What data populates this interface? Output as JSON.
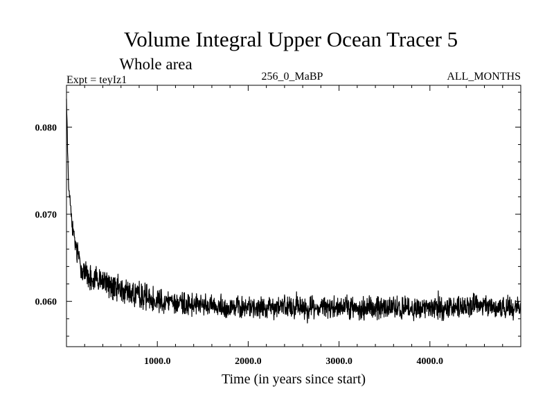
{
  "chart_data": {
    "type": "line",
    "title": "Volume Integral Upper Ocean Tracer 5",
    "subtitle": "Whole area",
    "experiment_label": "Expt = teyIz1",
    "run_label": "256_0_MaBP",
    "period_label": "ALL_MONTHS",
    "xlabel": "Time (in years since start)",
    "ylabel": "",
    "xlim": [
      0,
      5000
    ],
    "ylim": [
      0.0548,
      0.0848
    ],
    "x_ticks": [
      {
        "value": 1000,
        "label": "1000.0"
      },
      {
        "value": 2000,
        "label": "2000.0"
      },
      {
        "value": 3000,
        "label": "3000.0"
      },
      {
        "value": 4000,
        "label": "4000.0"
      }
    ],
    "y_ticks": [
      {
        "value": 0.06,
        "label": "0.060"
      },
      {
        "value": 0.07,
        "label": "0.070"
      },
      {
        "value": 0.08,
        "label": "0.080"
      }
    ],
    "grid": false,
    "series": [
      {
        "name": "Volume Integral Upper Ocean Tracer 5",
        "color": "#000000",
        "x": [
          0,
          10,
          20,
          40,
          60,
          80,
          100,
          150,
          200,
          300,
          400,
          500,
          700,
          1000,
          1500,
          2000,
          2500,
          3000,
          3500,
          4000,
          4500,
          5000
        ],
        "y": [
          0.084,
          0.078,
          0.0745,
          0.0715,
          0.069,
          0.0675,
          0.0662,
          0.0645,
          0.0632,
          0.0625,
          0.0622,
          0.0617,
          0.061,
          0.0602,
          0.0595,
          0.0593,
          0.0594,
          0.0593,
          0.0593,
          0.0592,
          0.0594,
          0.0593
        ],
        "noise_amplitude": [
          0.0008,
          0.0009,
          0.0009,
          0.0009,
          0.0009,
          0.0009,
          0.001,
          0.0011,
          0.0012,
          0.0013,
          0.0013,
          0.0013,
          0.0012,
          0.0011,
          0.001,
          0.001,
          0.001,
          0.001,
          0.001,
          0.001,
          0.001,
          0.001
        ]
      }
    ]
  }
}
